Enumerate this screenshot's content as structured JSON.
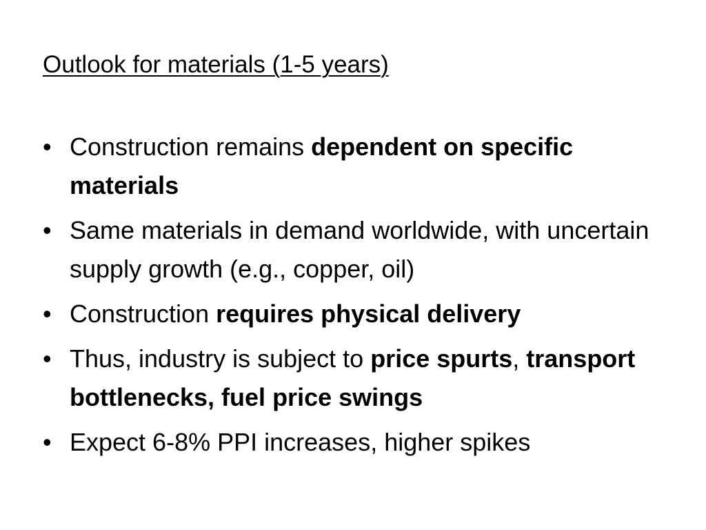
{
  "title": "Outlook for materials (1-5 years)",
  "bullets": [
    {
      "runs": [
        {
          "text": "Construction remains ",
          "bold": false
        },
        {
          "text": "dependent on specific materials",
          "bold": true
        }
      ]
    },
    {
      "runs": [
        {
          "text": "Same materials in demand worldwide, with uncertain supply growth (e.g., copper, oil)",
          "bold": false
        }
      ]
    },
    {
      "runs": [
        {
          "text": "Construction ",
          "bold": false
        },
        {
          "text": "requires physical delivery",
          "bold": true
        }
      ]
    },
    {
      "runs": [
        {
          "text": "Thus, industry is subject to ",
          "bold": false
        },
        {
          "text": "price spurts",
          "bold": true
        },
        {
          "text": ", ",
          "bold": false
        },
        {
          "text": "transport bottlenecks, fuel price swings",
          "bold": true
        }
      ]
    },
    {
      "runs": [
        {
          "text": "Expect 6-8% PPI increases, higher spikes",
          "bold": false
        }
      ]
    }
  ]
}
